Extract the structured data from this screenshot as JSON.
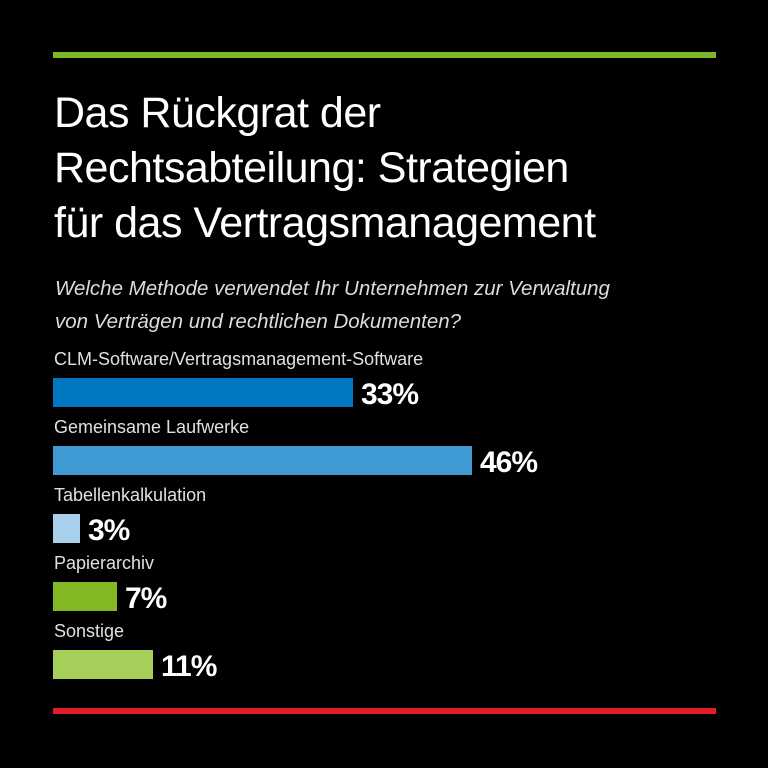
{
  "colors": {
    "top_rule": "#7db824",
    "bottom_rule": "#e11d2a"
  },
  "chart_data": {
    "type": "bar",
    "orientation": "horizontal",
    "title": "Das Rückgrat der Rechtsabteilung: Strategien für das Vertragsmanagement",
    "title_lines": [
      "Das Rückgrat der",
      "Rechtsabteilung: Strategien",
      "für das Vertragsmanagement"
    ],
    "subtitle_lines": [
      "Welche Methode verwendet Ihr Unternehmen zur Verwaltung",
      "von Verträgen und rechtlichen Dokumenten?"
    ],
    "categories": [
      "CLM-Software/Vertragsmanagement-Software",
      "Gemeinsame Laufwerke",
      "Tabellenkalkulation",
      "Papierarchiv",
      "Sonstige"
    ],
    "values": [
      33,
      46,
      3,
      7,
      11
    ],
    "value_labels": [
      "33%",
      "46%",
      "3%",
      "7%",
      "11%"
    ],
    "colors": [
      "#0077c0",
      "#3f9ad4",
      "#a8d0ec",
      "#84b923",
      "#a6cf5a"
    ],
    "unit": "%",
    "xlabel": "",
    "ylabel": "",
    "xlim": [
      0,
      100
    ],
    "grid": false,
    "legend": "none"
  }
}
